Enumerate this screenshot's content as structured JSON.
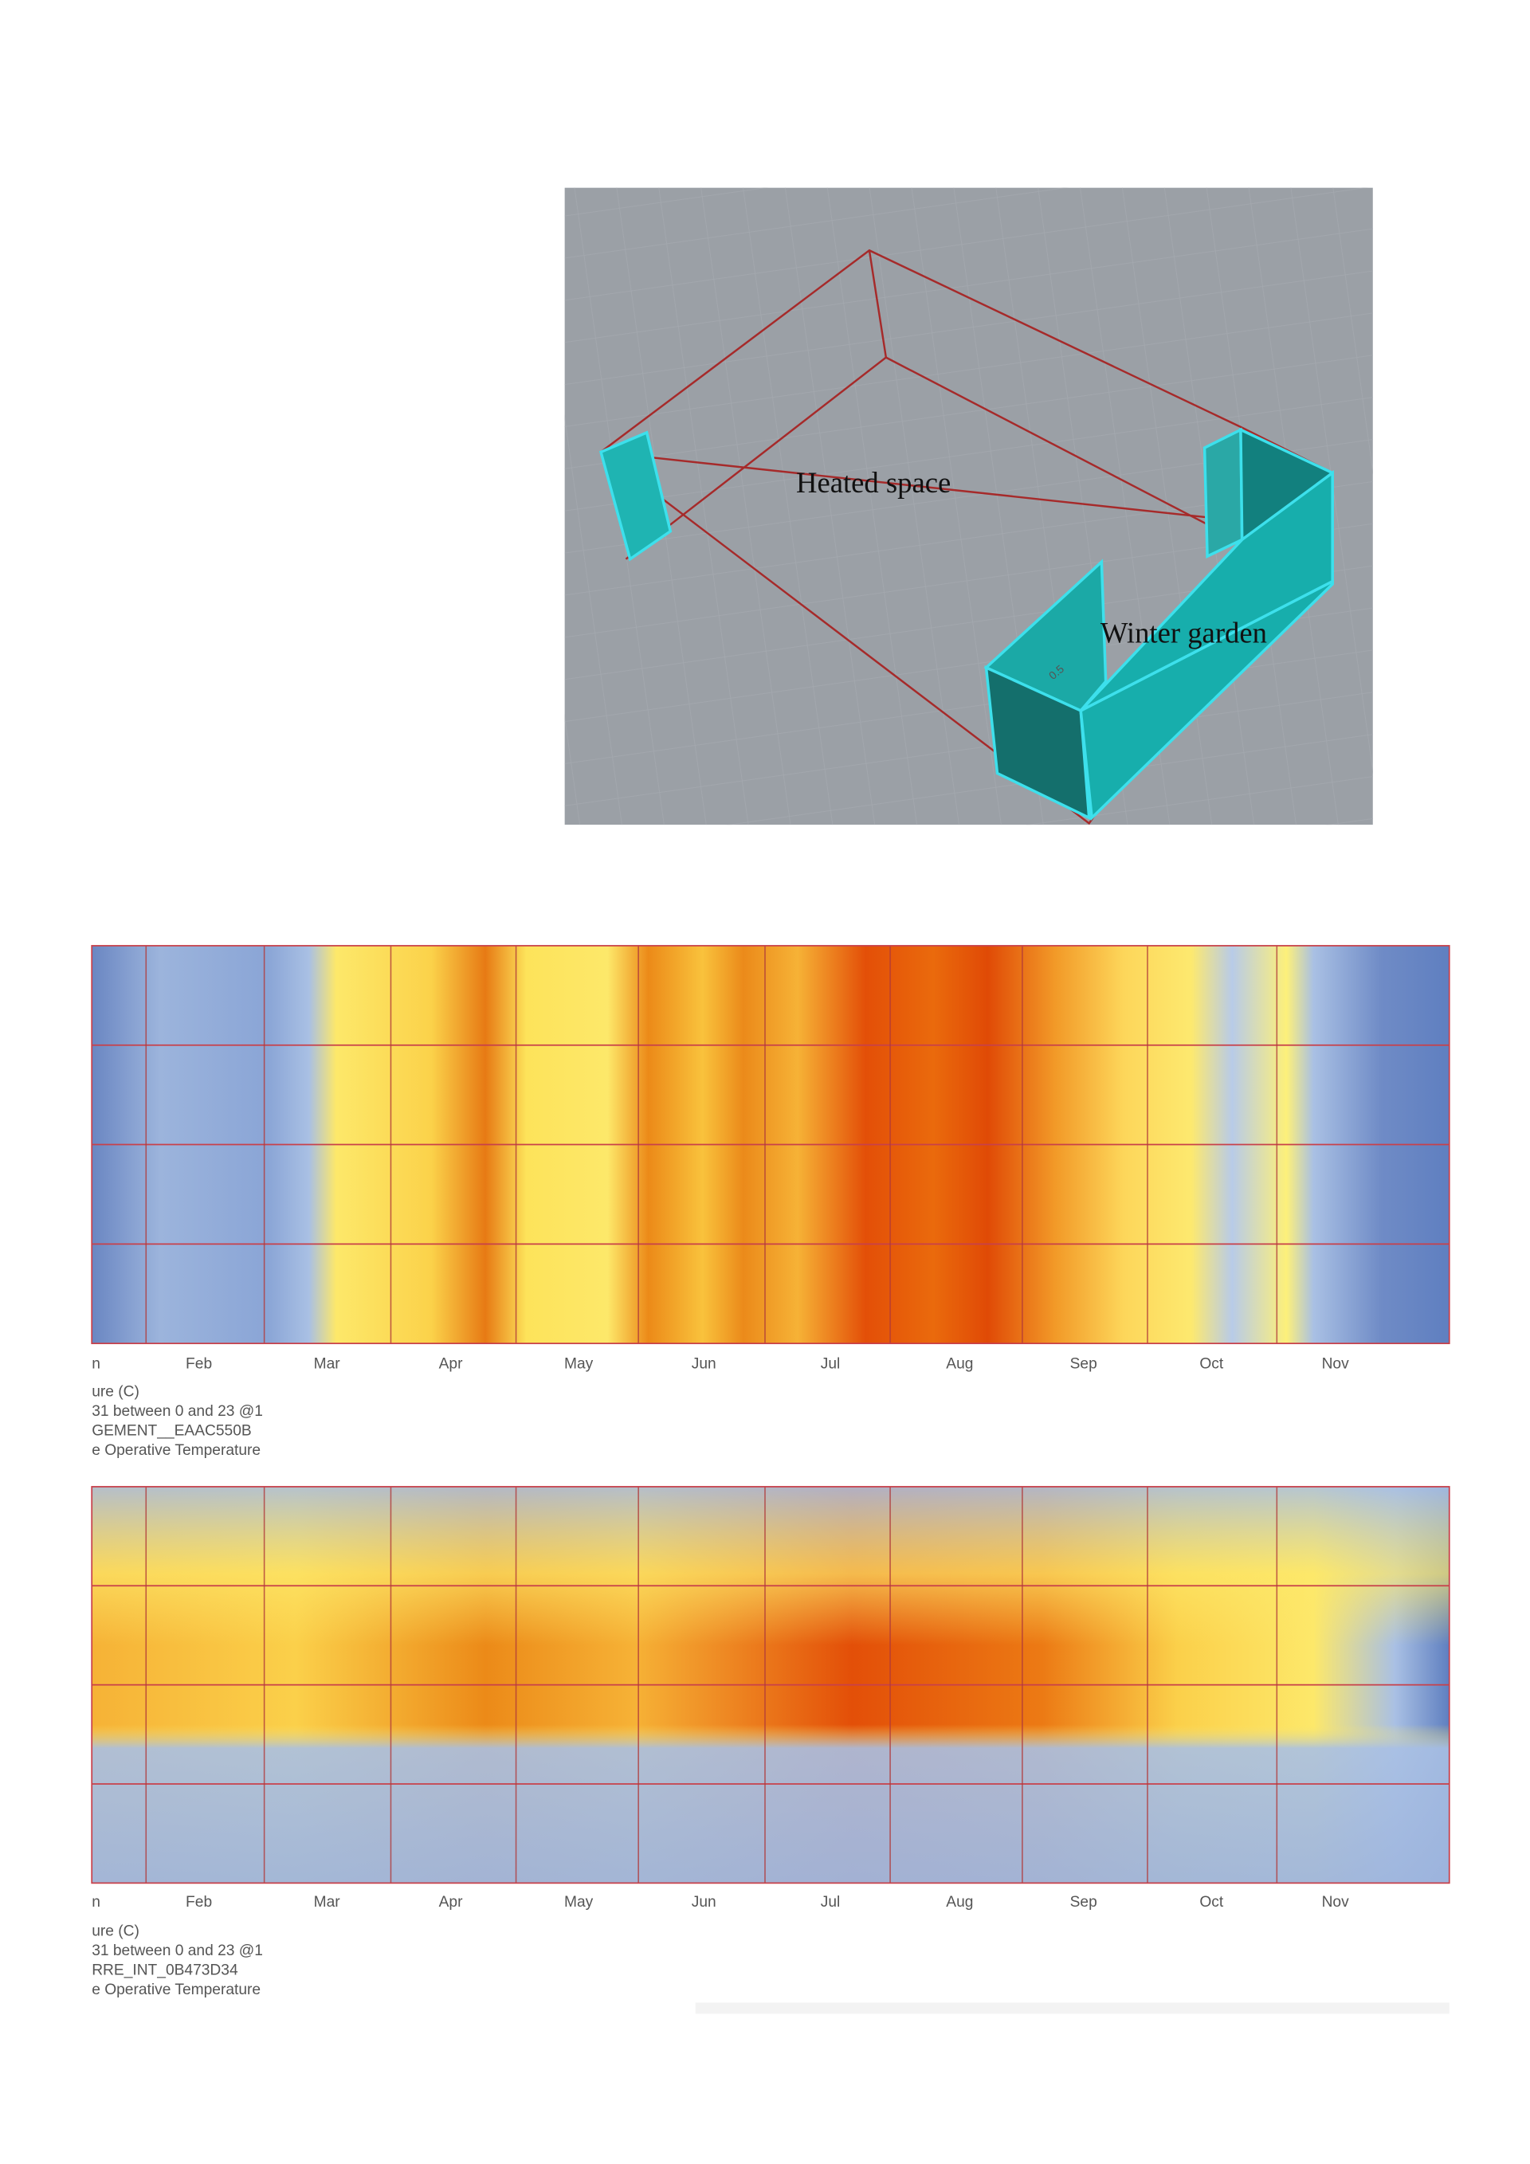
{
  "figure_a": {
    "labels": [
      "Heated space",
      "Winter garden"
    ],
    "dimension": "0.5"
  },
  "heatmaps": [
    {
      "months": [
        "n",
        "Feb",
        "Mar",
        "Apr",
        "May",
        "Jun",
        "Jul",
        "Aug",
        "Sep",
        "Oct",
        "Nov"
      ],
      "caption": [
        "ure (C)",
        "31 between 0 and 23 @1",
        "GEMENT__EAAC550B",
        "e Operative Temperature"
      ]
    },
    {
      "months": [
        "n",
        "Feb",
        "Mar",
        "Apr",
        "May",
        "Jun",
        "Jul",
        "Aug",
        "Sep",
        "Oct",
        "Nov"
      ],
      "caption": [
        "ure (C)",
        "31 between 0 and 23 @1",
        "RRE_INT_0B473D34",
        "e Operative Temperature"
      ]
    }
  ]
}
